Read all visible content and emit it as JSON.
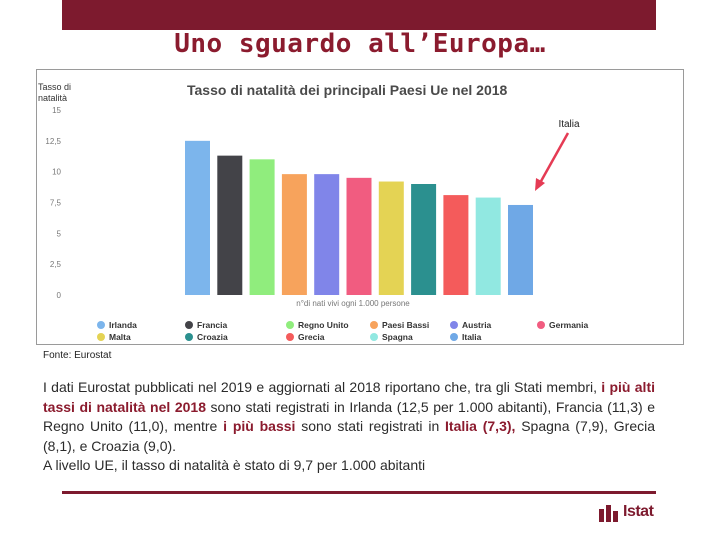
{
  "slide": {
    "title": "Uno sguardo all’Europa…",
    "source": "Fonte: Eurostat",
    "logo_text": "Istat"
  },
  "colors": {
    "brand": "#7d1a2e",
    "highlight": "#8b1b2e",
    "annotation_arrow": "#e53b54"
  },
  "paragraph": {
    "p1_a": "I dati Eurostat pubblicati nel 2019 e aggiornati al 2018 riportano che, tra gli Stati membri, ",
    "p1_hl1": "i più alti tassi di natalità nel 2018",
    "p1_b": " sono stati registrati in Irlanda (12,5 per 1.000 abitanti), Francia (11,3) e Regno Unito (11,0), mentre ",
    "p1_hl2": "i più bassi",
    "p1_c": " sono stati registrati in ",
    "p1_hl3": "Italia (7,3),",
    "p1_d": " Spagna (7,9), Grecia (8,1), e Croazia (9,0).",
    "p2": "A livello UE, il tasso di natalità è stato di 9,7 per 1.000 abitanti"
  },
  "chart_data": {
    "type": "bar",
    "title": "Tasso di natalità dei principali Paesi Ue nel 2018",
    "ylabel": "Tasso di natalità",
    "xlabel": "n°di nati vivi ogni 1.000 persone",
    "ylim": [
      0,
      15
    ],
    "yticks": [
      "0",
      "2,5",
      "5",
      "7,5",
      "10",
      "12,5",
      "15"
    ],
    "ytick_values": [
      0,
      2.5,
      5,
      7.5,
      10,
      12.5,
      15
    ],
    "annotation": "Italia",
    "legend_position": "bottom",
    "categories": [
      "Irlanda",
      "Francia",
      "Regno Unito",
      "Paesi Bassi",
      "Austria",
      "Germania",
      "Malta",
      "Croazia",
      "Grecia",
      "Spagna",
      "Italia"
    ],
    "values": [
      12.5,
      11.3,
      11.0,
      9.8,
      9.8,
      9.5,
      9.2,
      9.0,
      8.1,
      7.9,
      7.3
    ],
    "series_colors": [
      "#7cb5ec",
      "#434348",
      "#90ed7d",
      "#f7a35c",
      "#8085e9",
      "#f15c80",
      "#e4d354",
      "#2b908f",
      "#f45b5b",
      "#91e8e1",
      "#6fa8e6"
    ],
    "legend": [
      {
        "label": "Irlanda",
        "color": "#7cb5ec"
      },
      {
        "label": "Francia",
        "color": "#434348"
      },
      {
        "label": "Regno Unito",
        "color": "#90ed7d"
      },
      {
        "label": "Paesi Bassi",
        "color": "#f7a35c"
      },
      {
        "label": "Austria",
        "color": "#8085e9"
      },
      {
        "label": "Germania",
        "color": "#f15c80"
      },
      {
        "label": "Malta",
        "color": "#e4d354"
      },
      {
        "label": "Croazia",
        "color": "#2b908f"
      },
      {
        "label": "Grecia",
        "color": "#f45b5b"
      },
      {
        "label": "Spagna",
        "color": "#91e8e1"
      },
      {
        "label": "Italia",
        "color": "#6fa8e6"
      }
    ]
  }
}
